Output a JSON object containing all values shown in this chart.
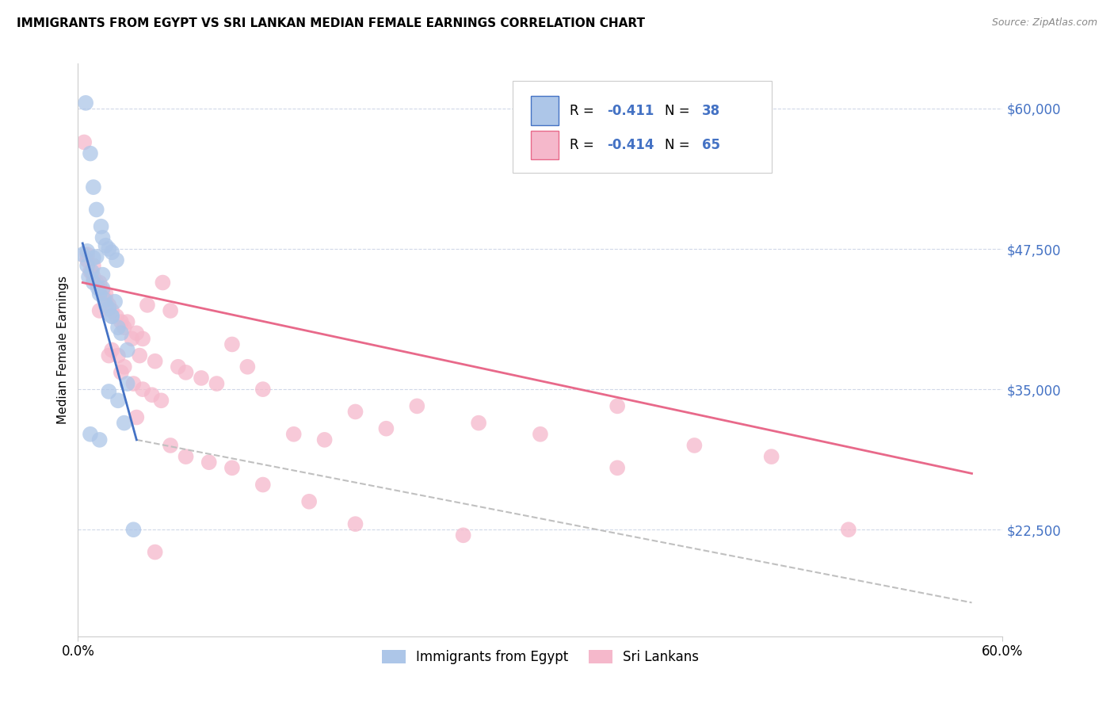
{
  "title": "IMMIGRANTS FROM EGYPT VS SRI LANKAN MEDIAN FEMALE EARNINGS CORRELATION CHART",
  "source": "Source: ZipAtlas.com",
  "ylabel": "Median Female Earnings",
  "ylim": [
    13000,
    64000
  ],
  "xlim": [
    0.0,
    0.6
  ],
  "ytick_vals": [
    22500,
    35000,
    47500,
    60000
  ],
  "ytick_labels": [
    "$22,500",
    "$35,000",
    "$47,500",
    "$60,000"
  ],
  "xtick_vals": [
    0.0,
    0.6
  ],
  "xtick_labels": [
    "0.0%",
    "60.0%"
  ],
  "legend_r1_val": "-0.411",
  "legend_n1_val": "38",
  "legend_r2_val": "-0.414",
  "legend_n2_val": "65",
  "color_egypt": "#adc6e8",
  "color_srilanka": "#f5b8cb",
  "color_egypt_line": "#4472c4",
  "color_srilanka_line": "#e8698a",
  "color_dashed": "#c0c0c0",
  "background_color": "#ffffff",
  "grid_color": "#d0d8e8",
  "legend_label1": "Immigrants from Egypt",
  "legend_label2": "Sri Lankans",
  "egypt_scatter_x": [
    0.005,
    0.008,
    0.01,
    0.012,
    0.015,
    0.016,
    0.018,
    0.02,
    0.022,
    0.025,
    0.007,
    0.01,
    0.014,
    0.018,
    0.022,
    0.028,
    0.032,
    0.012,
    0.016,
    0.02,
    0.003,
    0.006,
    0.009,
    0.013,
    0.017,
    0.022,
    0.026,
    0.032,
    0.008,
    0.014,
    0.006,
    0.01,
    0.016,
    0.024,
    0.02,
    0.026,
    0.03,
    0.036
  ],
  "egypt_scatter_y": [
    60500,
    56000,
    53000,
    51000,
    49500,
    48500,
    47800,
    47500,
    47200,
    46500,
    45000,
    44500,
    43500,
    42500,
    41500,
    40000,
    38500,
    46800,
    44000,
    42200,
    47000,
    46000,
    45500,
    44000,
    43000,
    41500,
    40500,
    35500,
    31000,
    30500,
    47300,
    46700,
    45200,
    42800,
    34800,
    34000,
    32000,
    22500
  ],
  "srilanka_scatter_x": [
    0.004,
    0.006,
    0.008,
    0.01,
    0.012,
    0.014,
    0.016,
    0.018,
    0.02,
    0.022,
    0.025,
    0.028,
    0.03,
    0.032,
    0.035,
    0.038,
    0.04,
    0.042,
    0.045,
    0.05,
    0.055,
    0.06,
    0.065,
    0.07,
    0.08,
    0.09,
    0.1,
    0.11,
    0.12,
    0.14,
    0.16,
    0.18,
    0.2,
    0.22,
    0.26,
    0.3,
    0.35,
    0.4,
    0.45,
    0.5,
    0.006,
    0.01,
    0.014,
    0.018,
    0.022,
    0.026,
    0.03,
    0.036,
    0.042,
    0.048,
    0.054,
    0.06,
    0.07,
    0.085,
    0.1,
    0.12,
    0.15,
    0.18,
    0.25,
    0.35,
    0.014,
    0.02,
    0.028,
    0.038,
    0.05
  ],
  "srilanka_scatter_y": [
    57000,
    46500,
    45500,
    45000,
    44500,
    44000,
    43800,
    43500,
    42500,
    42000,
    41500,
    41000,
    40500,
    41000,
    39500,
    40000,
    38000,
    39500,
    42500,
    37500,
    44500,
    42000,
    37000,
    36500,
    36000,
    35500,
    39000,
    37000,
    35000,
    31000,
    30500,
    33000,
    31500,
    33500,
    32000,
    31000,
    33500,
    30000,
    29000,
    22500,
    47000,
    46000,
    44500,
    43000,
    38500,
    38000,
    37000,
    35500,
    35000,
    34500,
    34000,
    30000,
    29000,
    28500,
    28000,
    26500,
    25000,
    23000,
    22000,
    28000,
    42000,
    38000,
    36500,
    32500,
    20500
  ],
  "egypt_line_x": [
    0.003,
    0.038
  ],
  "egypt_line_y": [
    48000,
    30500
  ],
  "srilanka_line_x": [
    0.003,
    0.58
  ],
  "srilanka_line_y": [
    44500,
    27500
  ],
  "dashed_line_x": [
    0.038,
    0.58
  ],
  "dashed_line_y": [
    30500,
    16000
  ]
}
